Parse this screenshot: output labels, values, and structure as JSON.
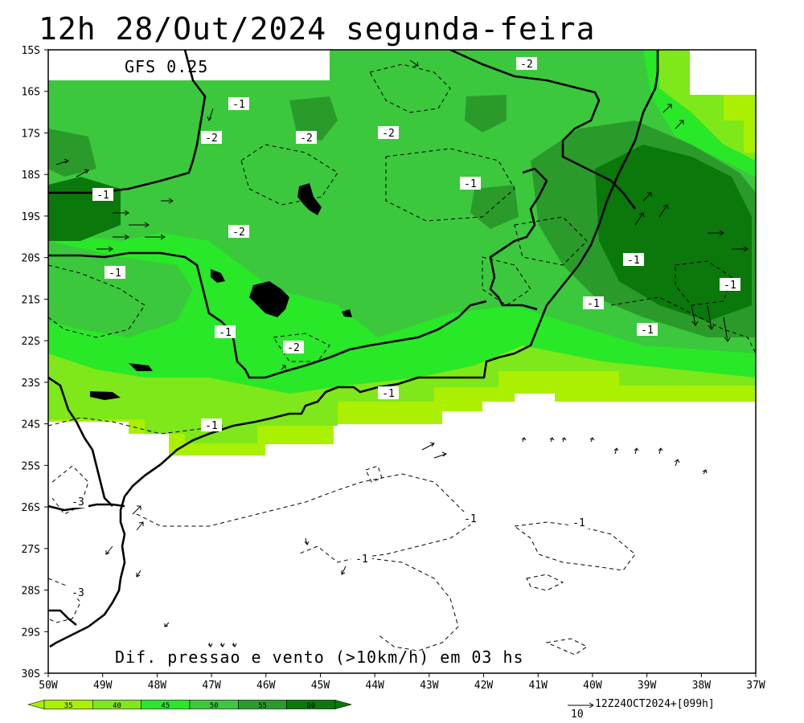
{
  "title": "12h 28/Out/2024 segunda-feira",
  "model_label": "GFS 0.25",
  "caption": "Dif. pressao e vento (>10km/h) em 03 hs",
  "run_info": "12Z24OCT2024+[099h]",
  "vector_reference": "10",
  "lat_labels": [
    "15S",
    "16S",
    "17S",
    "18S",
    "19S",
    "20S",
    "21S",
    "22S",
    "23S",
    "24S",
    "25S",
    "26S",
    "27S",
    "28S",
    "29S",
    "30S"
  ],
  "lon_labels": [
    "50W",
    "49W",
    "48W",
    "47W",
    "46W",
    "45W",
    "44W",
    "43W",
    "42W",
    "41W",
    "40W",
    "39W",
    "38W",
    "37W"
  ],
  "colorbar": {
    "labels": [
      "35",
      "40",
      "45",
      "50",
      "55",
      "60"
    ],
    "colors": [
      "#aaf000",
      "#7ee81a",
      "#28e828",
      "#3cc83c",
      "#2a9b2a",
      "#0a780a"
    ]
  },
  "contour_labels": [
    {
      "text": "-2"
    },
    {
      "text": "-1"
    },
    {
      "text": "-2"
    },
    {
      "text": "-2"
    },
    {
      "text": "-2"
    },
    {
      "text": "-1"
    },
    {
      "text": "-1"
    },
    {
      "text": "-2"
    },
    {
      "text": "-1"
    },
    {
      "text": "-1"
    },
    {
      "text": "-1"
    },
    {
      "text": "-1"
    },
    {
      "text": "-1"
    },
    {
      "text": "-2"
    },
    {
      "text": "-1"
    },
    {
      "text": "-1"
    },
    {
      "text": "-1"
    },
    {
      "text": "-1"
    },
    {
      "text": "-1"
    },
    {
      "text": "-3"
    },
    {
      "text": "-1"
    },
    {
      "text": "-3"
    }
  ]
}
